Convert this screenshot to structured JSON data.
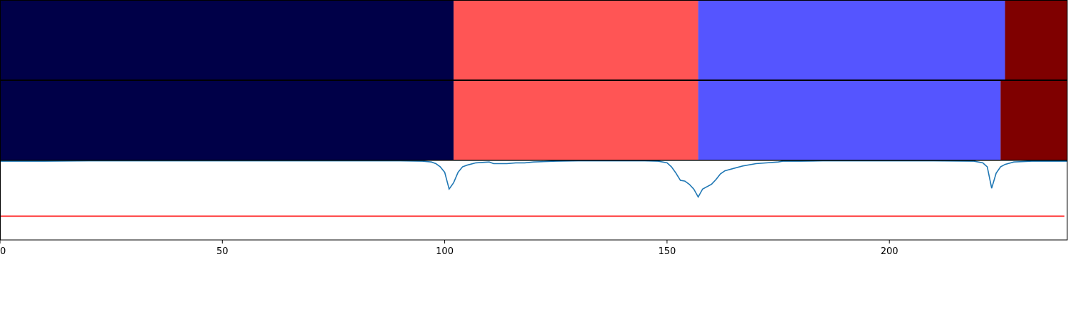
{
  "chart_data": [
    {
      "type": "heatmap",
      "panel": "segmentation-track-1",
      "segments": [
        {
          "start": 0,
          "end": 102,
          "color": "#000048"
        },
        {
          "start": 102,
          "end": 157,
          "color": "#ff5555"
        },
        {
          "start": 157,
          "end": 226,
          "color": "#5555ff"
        },
        {
          "start": 226,
          "end": 240,
          "color": "#7f0000"
        }
      ]
    },
    {
      "type": "heatmap",
      "panel": "segmentation-track-2",
      "segments": [
        {
          "start": 0,
          "end": 102,
          "color": "#000048"
        },
        {
          "start": 102,
          "end": 157,
          "color": "#ff5555"
        },
        {
          "start": 157,
          "end": 225,
          "color": "#5555ff"
        },
        {
          "start": 225,
          "end": 240,
          "color": "#7f0000"
        }
      ]
    },
    {
      "type": "line",
      "panel": "signal-track",
      "xlim": [
        0,
        240
      ],
      "ylim": [
        -1.0,
        0.0
      ],
      "series": [
        {
          "color": "#1f77b4",
          "x": [
            0,
            10,
            20,
            40,
            60,
            80,
            90,
            95,
            97,
            98,
            99,
            100,
            101,
            102,
            103,
            104,
            105,
            107,
            110,
            111,
            112,
            114,
            116,
            118,
            120,
            125,
            130,
            140,
            145,
            148,
            150,
            151,
            152,
            153,
            154,
            155,
            156,
            157,
            158,
            160,
            161,
            162,
            163,
            165,
            167,
            170,
            175,
            176,
            180,
            185,
            190,
            200,
            210,
            219,
            221,
            222,
            223,
            224,
            225,
            226,
            228,
            232,
            240
          ],
          "y": [
            -0.01,
            -0.01,
            -0.005,
            -0.005,
            -0.005,
            -0.005,
            -0.005,
            -0.01,
            -0.02,
            -0.04,
            -0.08,
            -0.15,
            -0.36,
            -0.28,
            -0.15,
            -0.08,
            -0.06,
            -0.03,
            -0.02,
            -0.04,
            -0.04,
            -0.04,
            -0.03,
            -0.03,
            -0.02,
            -0.01,
            -0.005,
            -0.005,
            -0.005,
            -0.01,
            -0.03,
            -0.08,
            -0.16,
            -0.25,
            -0.26,
            -0.3,
            -0.36,
            -0.46,
            -0.36,
            -0.3,
            -0.24,
            -0.17,
            -0.13,
            -0.1,
            -0.07,
            -0.04,
            -0.02,
            -0.01,
            -0.01,
            -0.005,
            -0.005,
            -0.005,
            -0.005,
            -0.01,
            -0.03,
            -0.08,
            -0.35,
            -0.16,
            -0.08,
            -0.05,
            -0.02,
            -0.01,
            -0.01
          ]
        },
        {
          "color": "#ff0000",
          "x": [
            0,
            240
          ],
          "y": [
            -0.7,
            -0.7
          ]
        }
      ],
      "xticks": [
        "0",
        "50",
        "100",
        "150",
        "200"
      ]
    }
  ]
}
